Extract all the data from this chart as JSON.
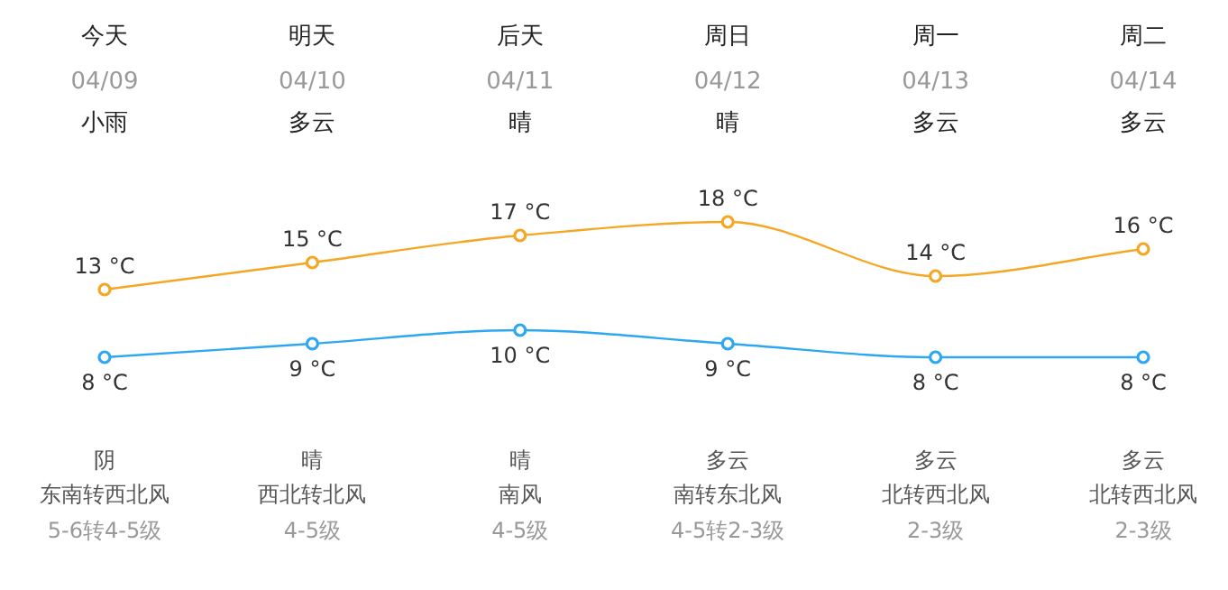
{
  "chart_data": {
    "type": "line",
    "categories": [
      "今天",
      "明天",
      "后天",
      "周日",
      "周一",
      "周二"
    ],
    "series": [
      {
        "color": "#f5a623",
        "values": [
          13,
          15,
          17,
          18,
          14,
          16
        ],
        "value_labels": [
          "13 °C",
          "15 °C",
          "17 °C",
          "18 °C",
          "14 °C",
          "16 °C"
        ]
      },
      {
        "color": "#2ea7f2",
        "values": [
          8,
          9,
          10,
          9,
          8,
          8
        ],
        "value_labels": [
          "8 °C",
          "9 °C",
          "10 °C",
          "9 °C",
          "8 °C",
          "8 °C"
        ]
      }
    ],
    "marker": "circle",
    "annotations": [
      "04/09",
      "04/10",
      "04/11",
      "04/12",
      "04/13",
      "04/14",
      "小雨",
      "多云",
      "晴",
      "晴",
      "多云",
      "多云",
      "阴",
      "晴",
      "晴",
      "多云",
      "多云",
      "多云",
      "东南转西北风",
      "西北转北风",
      "南风",
      "南转东北风",
      "北转西北风",
      "北转西北风",
      "5-6转4-5级",
      "4-5级",
      "4-5级",
      "4-5转2-3级",
      "2-3级",
      "2-3级"
    ]
  }
}
